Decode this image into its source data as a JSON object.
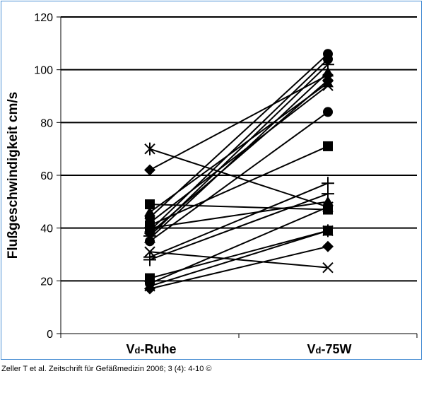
{
  "chart_data": {
    "type": "line",
    "ylabel": "Flußgeschwindigkeit cm/s",
    "xlabel": "",
    "categories": [
      {
        "main": "V",
        "sub": "d",
        "rest": "-Ruhe"
      },
      {
        "main": "V",
        "sub": "d",
        "rest": "-75W"
      }
    ],
    "ylim": [
      0,
      120
    ],
    "yticks": [
      "0",
      "20",
      "40",
      "60",
      "80",
      "100",
      "120"
    ],
    "grid": true,
    "series": [
      {
        "marker": "star",
        "values": [
          70,
          48
        ]
      },
      {
        "marker": "diamond",
        "values": [
          62,
          98
        ]
      },
      {
        "marker": "square",
        "values": [
          49,
          47
        ]
      },
      {
        "marker": "triangle",
        "values": [
          46,
          95
        ]
      },
      {
        "marker": "circle",
        "values": [
          44,
          106
        ]
      },
      {
        "marker": "x",
        "values": [
          42,
          94
        ]
      },
      {
        "marker": "square",
        "values": [
          41,
          71
        ]
      },
      {
        "marker": "triangle",
        "values": [
          40,
          50
        ]
      },
      {
        "marker": "circle",
        "values": [
          39,
          104
        ]
      },
      {
        "marker": "diamond",
        "values": [
          38,
          96
        ]
      },
      {
        "marker": "plus",
        "values": [
          37,
          102
        ]
      },
      {
        "marker": "triangle",
        "values": [
          36,
          99
        ]
      },
      {
        "marker": "circle",
        "values": [
          35,
          84
        ]
      },
      {
        "marker": "x",
        "values": [
          31,
          25
        ]
      },
      {
        "marker": "plus",
        "values": [
          29,
          57
        ]
      },
      {
        "marker": "plus",
        "values": [
          28,
          53
        ]
      },
      {
        "marker": "square",
        "values": [
          21,
          39
        ]
      },
      {
        "marker": "circle",
        "values": [
          19,
          48
        ]
      },
      {
        "marker": "star",
        "values": [
          18,
          39
        ]
      },
      {
        "marker": "diamond",
        "values": [
          17,
          33
        ]
      }
    ]
  },
  "caption": "Zeller T et al. Zeitschrift für Gefäßmedizin 2006; 3 (4): 4-10 ©"
}
